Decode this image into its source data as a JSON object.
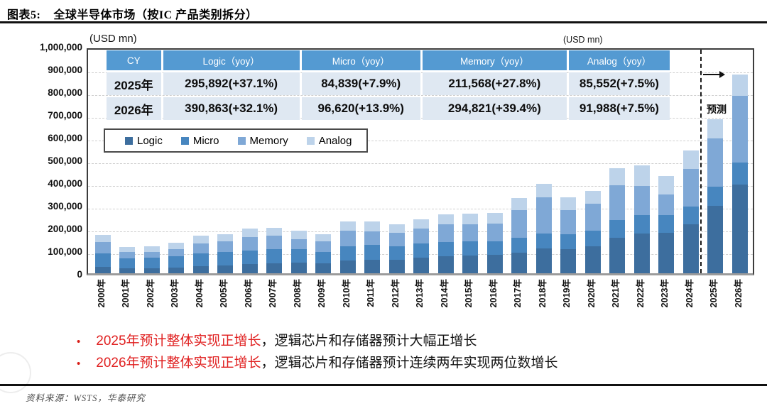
{
  "title": {
    "tag": "图表5:",
    "text": "全球半导体市场（按IC 产品类别拆分）"
  },
  "chart": {
    "unit_label_left": "(USD mn)",
    "unit_label_right": "(USD mn)",
    "forecast_label": "预测",
    "y_ticks": [
      "1,000,000",
      "900,000",
      "800,000",
      "700,000",
      "600,000",
      "500,000",
      "400,000",
      "300,000",
      "200,000",
      "100,000",
      "0"
    ]
  },
  "table": {
    "headers": [
      "CY",
      "Logic（yoy）",
      "Micro（yoy）",
      "Memory（yoy）",
      "Analog（yoy）"
    ],
    "rows": [
      [
        "2025年",
        "295,892(+37.1%)",
        "84,839(+7.9%)",
        "211,568(+27.8%)",
        "85,552(+7.5%)"
      ],
      [
        "2026年",
        "390,863(+32.1%)",
        "96,620(+13.9%)",
        "294,821(+39.4%)",
        "91,988(+7.5%)"
      ]
    ]
  },
  "legend": [
    {
      "label": "Logic",
      "color": "#3d6e9e"
    },
    {
      "label": "Micro",
      "color": "#4786bf"
    },
    {
      "label": "Memory",
      "color": "#7fa8d6"
    },
    {
      "label": "Analog",
      "color": "#bdd3ea"
    }
  ],
  "chart_data": {
    "type": "bar",
    "stacked": true,
    "title": "全球半导体市场（按IC产品类别拆分）",
    "xlabel": "",
    "ylabel": "USD mn",
    "ylim": [
      0,
      1000000
    ],
    "grid": "dashed-horizontal",
    "legend_position": "upper-left-box",
    "forecast_from": "2025年",
    "categories": [
      "2000年",
      "2001年",
      "2002年",
      "2003年",
      "2004年",
      "2005年",
      "2006年",
      "2007年",
      "2008年",
      "2009年",
      "2010年",
      "2011年",
      "2012年",
      "2013年",
      "2014年",
      "2015年",
      "2016年",
      "2017年",
      "2018年",
      "2019年",
      "2020年",
      "2021年",
      "2022年",
      "2023年",
      "2024年",
      "2025年",
      "2026年"
    ],
    "series": [
      {
        "name": "Logic",
        "values": [
          29200,
          22500,
          23300,
          26400,
          32300,
          34700,
          40200,
          45100,
          47000,
          44200,
          55700,
          59000,
          59200,
          70000,
          75000,
          78000,
          81500,
          91700,
          109300,
          106500,
          118400,
          154800,
          176500,
          178800,
          215800,
          295892,
          390863
        ]
      },
      {
        "name": "Micro",
        "values": [
          58900,
          43700,
          44600,
          48900,
          55400,
          58000,
          60100,
          60600,
          58300,
          50300,
          61600,
          65500,
          60700,
          60000,
          62100,
          61300,
          60600,
          63900,
          67200,
          66400,
          69600,
          80200,
          79000,
          76100,
          78600,
          84839,
          96620
        ]
      },
      {
        "name": "Memory",
        "values": [
          49200,
          26100,
          26300,
          32300,
          44700,
          48400,
          58400,
          58600,
          45400,
          44900,
          69600,
          59500,
          57000,
          67000,
          79200,
          77200,
          76800,
          124000,
          158000,
          106400,
          117500,
          153800,
          129800,
          92300,
          165500,
          211568,
          294821
        ]
      },
      {
        "name": "Analog",
        "values": [
          30500,
          22300,
          23200,
          26800,
          31900,
          32300,
          36900,
          36400,
          36900,
          31100,
          42300,
          42900,
          39300,
          40100,
          44400,
          45200,
          47800,
          53100,
          58800,
          53900,
          55700,
          74100,
          89000,
          81300,
          79600,
          85552,
          91988
        ]
      }
    ],
    "annotations": {
      "2025_total": 677851,
      "2026_total": 874292
    }
  },
  "bullets": [
    {
      "red": "2025年预计整体实现正增长",
      "black": "，逻辑芯片和存储器预计大幅正增长"
    },
    {
      "red": "2026年预计整体实现正增长",
      "black": "，逻辑芯片和存储器预计连续两年实现两位数增长"
    }
  ],
  "source": "资料来源：WSTS，华泰研究"
}
